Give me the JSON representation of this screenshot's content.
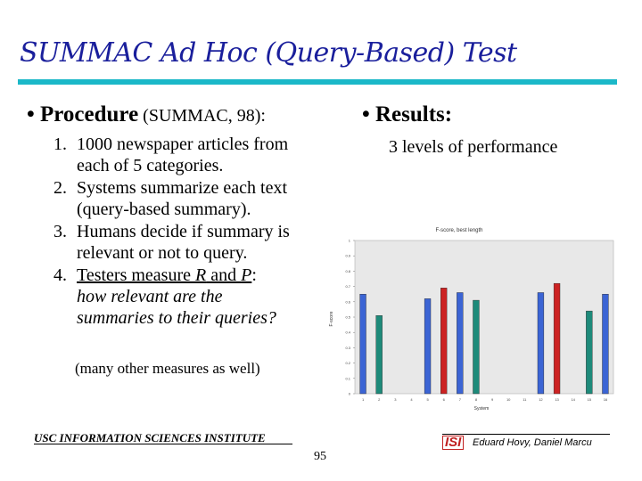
{
  "slide": {
    "title": "SUMMAC Ad Hoc (Query-Based) Test",
    "procedure_label": "• Procedure",
    "procedure_note": " (SUMMAC, 98):",
    "results_label": "• Results:",
    "results_text": "3 levels of performance",
    "steps": [
      {
        "num": "1.",
        "line1": "1000 newspaper articles from",
        "line2": "each of 5 categories."
      },
      {
        "num": "2.",
        "line1": "Systems summarize each text",
        "line2": "(query-based summary)."
      },
      {
        "num": "3.",
        "line1": "Humans decide if summary is",
        "line2": "relevant or not to query."
      },
      {
        "num": "4.",
        "line1a": "Testers measure ",
        "r": "R",
        "and": " and ",
        "p": "P",
        "colon": ":",
        "line2": "how relevant are the",
        "line3": "summaries to their queries?"
      }
    ],
    "other_note": "(many other measures as well)",
    "footer_left": "USC INFORMATION SCIENCES INSTITUTE",
    "footer_logo": "ISI",
    "footer_right": "Eduard Hovy, Daniel Marcu",
    "page_number": "95"
  },
  "chart_data": {
    "type": "bar",
    "title": "F-score, best length",
    "xlabel": "System",
    "ylabel": "F-score",
    "ylim": [
      0,
      1
    ],
    "yticks": [
      "0",
      "0.1",
      "0.2",
      "0.3",
      "0.4",
      "0.5",
      "0.6",
      "0.7",
      "0.8",
      "0.9",
      "1"
    ],
    "categories": [
      "1",
      "2",
      "3",
      "4",
      "5",
      "6",
      "7",
      "8",
      "9",
      "10",
      "11",
      "12",
      "13",
      "14",
      "15",
      "16"
    ],
    "values": [
      0.65,
      0.51,
      0,
      0,
      0.62,
      0.69,
      0.66,
      0.61,
      0,
      0,
      0,
      0.66,
      0.72,
      0,
      0.54,
      0.65
    ],
    "bar_colors": [
      "#3b64d4",
      "#1e8a7a",
      "#3b64d4",
      "#3b64d4",
      "#3b64d4",
      "#cc2222",
      "#3b64d4",
      "#1e8a7a",
      "#3b64d4",
      "#3b64d4",
      "#3b64d4",
      "#3b64d4",
      "#cc2222",
      "#3b64d4",
      "#1e8a7a",
      "#3b64d4"
    ],
    "grid": false
  }
}
